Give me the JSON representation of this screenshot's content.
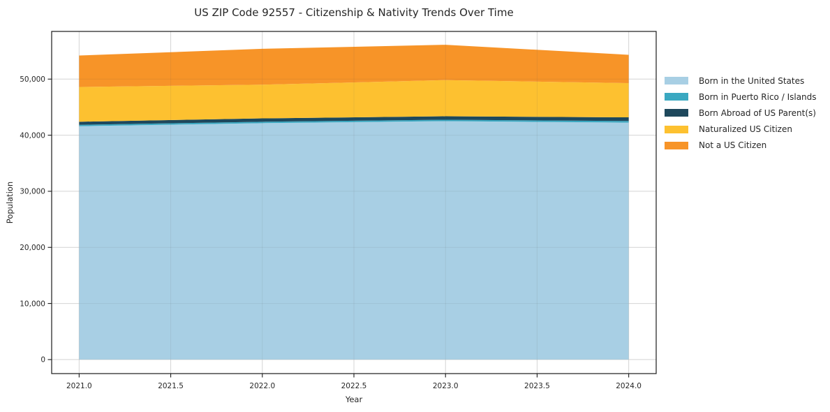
{
  "figure": {
    "background": "#ffffff",
    "text_color": "#262626",
    "grid_color": "#e4e4e4",
    "spine_color": "#1a1a1a"
  },
  "chart_data": {
    "type": "area",
    "stacked": true,
    "title": "US ZIP Code 92557 - Citizenship & Nativity Trends Over Time",
    "xlabel": "Year",
    "ylabel": "Population",
    "x": [
      2021,
      2022,
      2023,
      2024
    ],
    "series": [
      {
        "name": "Born in the United States",
        "color": "#a8cfe4",
        "values": [
          41600,
          42150,
          42500,
          42250
        ]
      },
      {
        "name": "Born in Puerto Rico / Islands",
        "color": "#3aa8c1",
        "values": [
          250,
          250,
          250,
          280
        ]
      },
      {
        "name": "Born Abroad of US Parent(s)",
        "color": "#1e485c",
        "values": [
          550,
          600,
          620,
          650
        ]
      },
      {
        "name": "Naturalized US Citizen",
        "color": "#fdc130",
        "values": [
          6200,
          6000,
          6450,
          6100
        ]
      },
      {
        "name": "Not a US Citizen",
        "color": "#f79428",
        "values": [
          5600,
          6400,
          6300,
          5050
        ]
      }
    ],
    "totals": [
      54200,
      55400,
      56120,
      54330
    ],
    "x_ticks": {
      "values": [
        2021.0,
        2021.5,
        2022.0,
        2022.5,
        2023.0,
        2023.5,
        2024.0
      ],
      "labels": [
        "2021.0",
        "2021.5",
        "2022.0",
        "2022.5",
        "2023.0",
        "2023.5",
        "2024.0"
      ]
    },
    "y_ticks": {
      "values": [
        0,
        10000,
        20000,
        30000,
        40000,
        50000
      ],
      "labels": [
        "0",
        "10,000",
        "20,000",
        "30,000",
        "40,000",
        "50,000"
      ]
    },
    "xlim": [
      2020.85,
      2024.15
    ],
    "ylim": [
      -2500,
      58500
    ],
    "grid": true,
    "legend_position": "right"
  }
}
